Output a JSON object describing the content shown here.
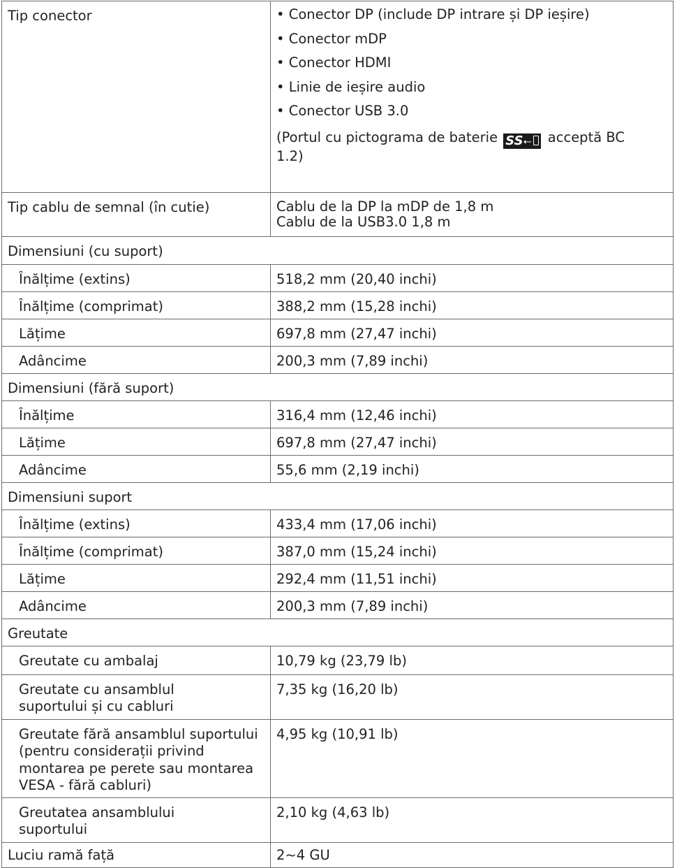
{
  "connector": {
    "label": "Tip conector",
    "bullets": [
      "• Conector DP (include DP intrare și DP ieșire)",
      "• Conector mDP",
      "• Conector HDMI",
      "• Linie de ieșire audio",
      "• Conector USB 3.0"
    ],
    "note_before": "(Portul cu pictograma de baterie",
    "icon_text": "SS",
    "icon_name": "usb-ss-battery-icon",
    "note_after": "acceptă BC",
    "note_tail": "1.2)"
  },
  "signal_cable": {
    "label": "Tip cablu de semnal (în cutie)",
    "lines": [
      "Cablu de la DP la mDP de 1,8 m",
      "Cablu de la USB3.0 1,8 m"
    ]
  },
  "sections": [
    {
      "title": "Dimensiuni (cu suport)",
      "rows": [
        {
          "label": "Înălțime (extins)",
          "value": "518,2 mm (20,40 inchi)"
        },
        {
          "label": "Înălțime (comprimat)",
          "value": "388,2 mm (15,28 inchi)"
        },
        {
          "label": "Lățime",
          "value": "697,8 mm (27,47 inchi)"
        },
        {
          "label": "Adâncime",
          "value": "200,3 mm (7,89 inchi)"
        }
      ]
    },
    {
      "title": "Dimensiuni (fără suport)",
      "rows": [
        {
          "label": "Înălțime",
          "value": "316,4 mm (12,46 inchi)"
        },
        {
          "label": "Lățime",
          "value": "697,8 mm (27,47 inchi)"
        },
        {
          "label": "Adâncime",
          "value": "55,6 mm (2,19 inchi)"
        }
      ]
    },
    {
      "title": "Dimensiuni suport",
      "rows": [
        {
          "label": "Înălțime (extins)",
          "value": "433,4 mm (17,06 inchi)"
        },
        {
          "label": "Înălțime (comprimat)",
          "value": "387,0 mm (15,24 inchi)"
        },
        {
          "label": "Lățime",
          "value": "292,4 mm (11,51 inchi)"
        },
        {
          "label": "Adâncime",
          "value": "200,3 mm (7,89 inchi)"
        }
      ]
    },
    {
      "title": "Greutate",
      "rows": [
        {
          "label": "Greutate cu ambalaj",
          "value": "10,79 kg (23,79 lb)"
        },
        {
          "label": "Greutate cu ansamblul suportului și cu cabluri",
          "value": "7,35 kg (16,20 lb)"
        },
        {
          "label": "Greutate fără ansamblul suportului (pentru considerații privind montarea pe perete sau montarea VESA - fără cabluri)",
          "value": "4,95 kg (10,91 lb)"
        },
        {
          "label": "Greutatea ansamblului suportului",
          "value": "2,10 kg (4,63 lb)"
        }
      ]
    }
  ],
  "gloss": {
    "label": "Luciu ramă față",
    "value": "2~4 GU"
  }
}
